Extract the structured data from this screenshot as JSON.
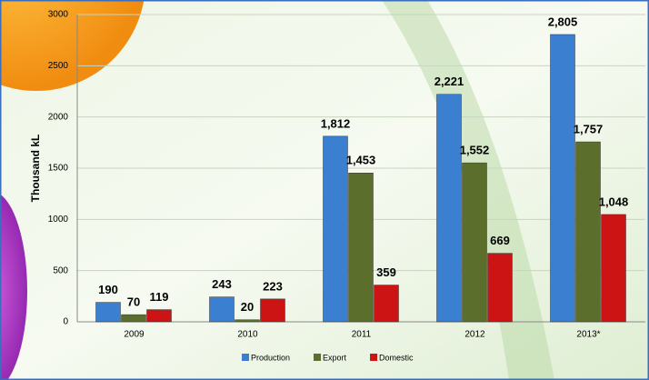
{
  "chart_data": {
    "type": "bar",
    "y_label": "Thousand kL",
    "categories": [
      "2009",
      "2010",
      "2011",
      "2012",
      "2013*"
    ],
    "series": [
      {
        "name": "Production",
        "color": "#3a7fd0",
        "values": [
          190,
          243,
          1812,
          2221,
          2805
        ],
        "value_labels": [
          "190",
          "243",
          "1,812",
          "2,221",
          "2,805"
        ]
      },
      {
        "name": "Export",
        "color": "#5c6e2c",
        "values": [
          70,
          20,
          1453,
          1552,
          1757
        ],
        "value_labels": [
          "70",
          "20",
          "1,453",
          "1,552",
          "1,757"
        ]
      },
      {
        "name": "Domestic",
        "color": "#cc1414",
        "values": [
          119,
          223,
          359,
          669,
          1048
        ],
        "value_labels": [
          "119",
          "223",
          "359",
          "669",
          "1,048"
        ]
      }
    ],
    "ylim": [
      0,
      3000
    ],
    "yticks": [
      0,
      500,
      1000,
      1500,
      2000,
      2500,
      3000
    ],
    "grid": true,
    "legend": "bottom"
  }
}
